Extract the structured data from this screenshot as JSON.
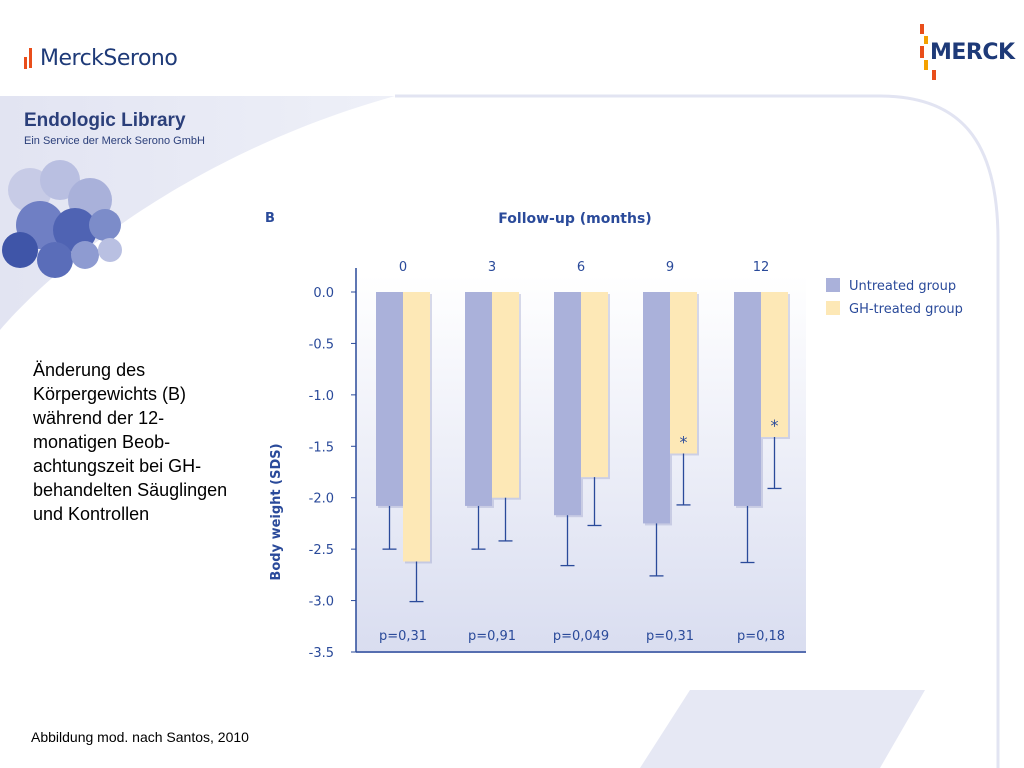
{
  "colors": {
    "brand_blue": "#1e3a78",
    "untreated": "#aab1da",
    "gh_treated": "#fde8b6",
    "axis_text": "#2a4a9a",
    "swoosh": "#e2e4f2"
  },
  "header": {
    "left_logo_text": "MerckSerono",
    "right_logo_text": "MERCK"
  },
  "library": {
    "title": "Endologic Library",
    "subtitle": "Ein Service der Merck Serono GmbH"
  },
  "description": "Änderung des Körpergewichts (B) während der 12-monatigen Beob-achtungszeit bei GH-behandelten Säuglingen und Kontrollen",
  "citation": "Abbildung mod. nach Santos, 2010",
  "chart_data": {
    "type": "bar",
    "panel_label": "B",
    "title": "Follow-up (months)",
    "ylabel": "Body weight (SDS)",
    "categories": [
      "0",
      "3",
      "6",
      "9",
      "12"
    ],
    "ylim": [
      -3.5,
      0.0
    ],
    "yticks": [
      "0.0",
      "-0.5",
      "-1.0",
      "-1.5",
      "-2.0",
      "-2.5",
      "-3.0",
      "-3.5"
    ],
    "series": [
      {
        "name": "Untreated group",
        "values": [
          -2.08,
          -2.08,
          -2.17,
          -2.25,
          -2.08
        ],
        "error_low": [
          -2.5,
          -2.5,
          -2.66,
          -2.76,
          -2.63
        ]
      },
      {
        "name": "GH-treated group",
        "values": [
          -2.62,
          -2.0,
          -1.8,
          -1.57,
          -1.41
        ],
        "error_low": [
          -3.01,
          -2.42,
          -2.27,
          -2.07,
          -1.91
        ]
      }
    ],
    "significance": [
      "",
      "",
      "",
      "*",
      "*"
    ],
    "p_values": [
      "p=0,31",
      "p=0,91",
      "p=0,049",
      "p=0,31",
      "p=0,18"
    ]
  }
}
